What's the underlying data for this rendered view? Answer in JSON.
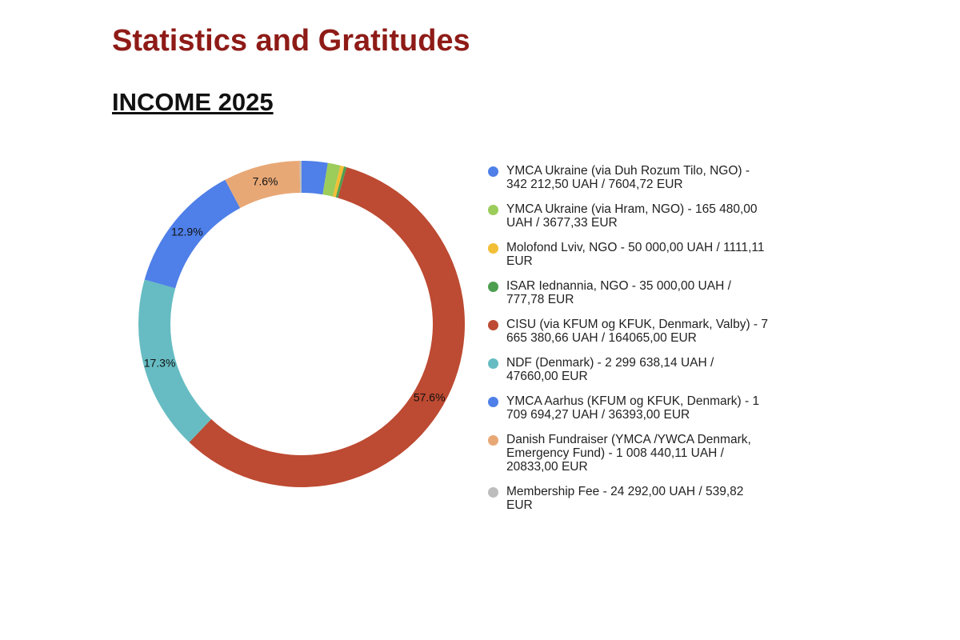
{
  "header": {
    "title": "Statistics and Gratitudes",
    "subtitle": "INCOME 2025"
  },
  "chart_data": {
    "type": "pie",
    "donut": true,
    "title": "INCOME 2025",
    "unit": "UAH",
    "legend_position": "right",
    "slices": [
      {
        "label": "YMCA Ukraine (via Duh  Rozum  Tilo, NGO) - 342 212,50 UAH / 7604,72 EUR",
        "value": 342212.5,
        "color": "#4f7fe8",
        "pct_label": ""
      },
      {
        "label": "YMCA Ukraine (via Hram, NGO) - 165 480,00 UAH / 3677,33 EUR",
        "value": 165480.0,
        "color": "#9ccc5a",
        "pct_label": ""
      },
      {
        "label": "Molofond Lviv, NGO - 50 000,00 UAH / 1111,11 EUR",
        "value": 50000.0,
        "color": "#f2be35",
        "pct_label": ""
      },
      {
        "label": "ISAR Iednannia, NGO - 35 000,00 UAH / 777,78 EUR",
        "value": 35000.0,
        "color": "#4e9e50",
        "pct_label": ""
      },
      {
        "label": "CISU (via KFUM og KFUK, Denmark, Valby) - 7 665 380,66 UAH / 164065,00 EUR",
        "value": 7665380.66,
        "color": "#bd4a32",
        "pct_label": "57.6%"
      },
      {
        "label": "NDF (Denmark) - 2 299 638,14 UAH / 47660,00 EUR",
        "value": 2299638.14,
        "color": "#66bcc2",
        "pct_label": "17.3%"
      },
      {
        "label": "YMCA Aarhus (KFUM og KFUK, Denmark) - 1 709 694,27 UAH / 36393,00 EUR",
        "value": 1709694.27,
        "color": "#4f7fe8",
        "pct_label": "12.9%"
      },
      {
        "label": "Danish Fundraiser (YMCA /YWCA Denmark, Emergency Fund) - 1 008 440,11 UAH / 20833,00 EUR",
        "value": 1008440.11,
        "color": "#e8a876",
        "pct_label": "7.6%"
      },
      {
        "label": "Membership Fee - 24 292,00 UAH / 539,82 EUR",
        "value": 24292.0,
        "color": "#bdbdbd",
        "pct_label": ""
      }
    ]
  }
}
